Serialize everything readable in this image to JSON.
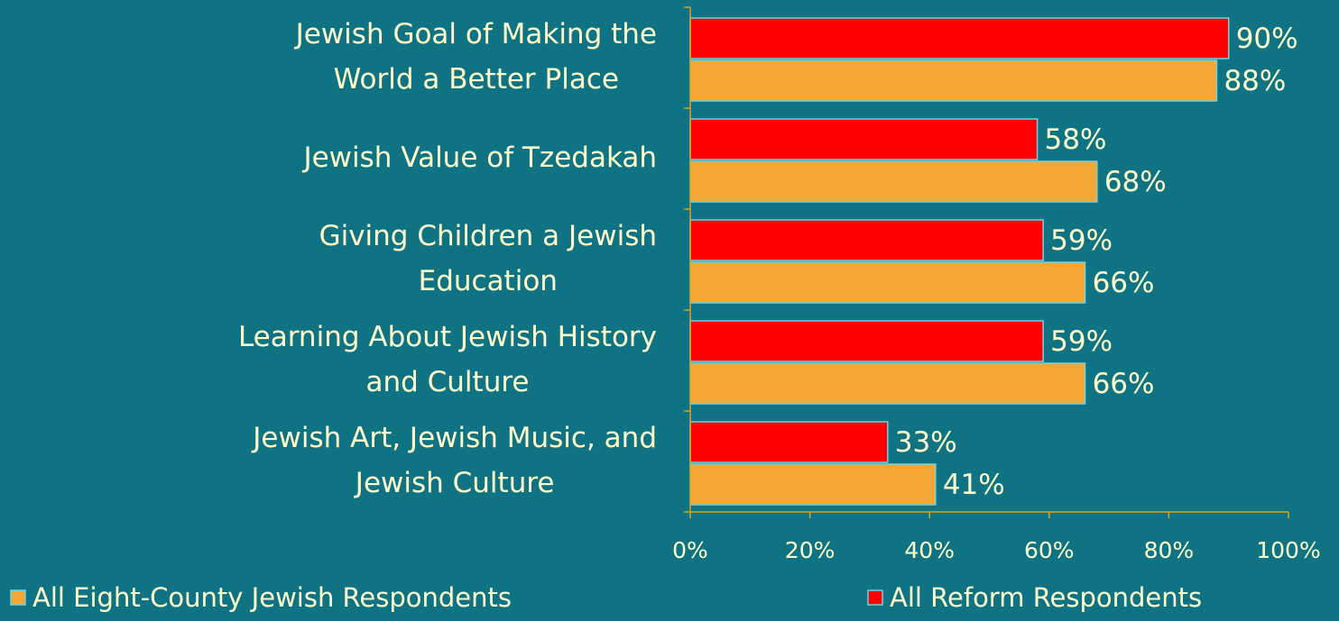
{
  "chart_data": {
    "type": "bar",
    "orientation": "horizontal",
    "categories": [
      "Jewish Goal of Making the\nWorld a Better Place",
      "Jewish Value of Tzedakah",
      "Giving Children a Jewish\nEducation",
      "Learning About Jewish History\nand Culture",
      "Jewish Art, Jewish Music, and\nJewish Culture"
    ],
    "series": [
      {
        "name": "All Eight-County Jewish Respondents",
        "color": "#f5a733",
        "values": [
          88,
          68,
          66,
          66,
          41
        ],
        "value_labels": [
          "88%",
          "68%",
          "66%",
          "66%",
          "41%"
        ]
      },
      {
        "name": "All Reform Respondents",
        "color": "#ff0000",
        "values": [
          90,
          58,
          59,
          59,
          33
        ],
        "value_labels": [
          "90%",
          "58%",
          "59%",
          "59%",
          "33%"
        ]
      }
    ],
    "xlim": [
      0,
      100
    ],
    "xticks": [
      {
        "value": 0,
        "label": "0%"
      },
      {
        "value": 20,
        "label": "20%"
      },
      {
        "value": 40,
        "label": "40%"
      },
      {
        "value": 60,
        "label": "60%"
      },
      {
        "value": 80,
        "label": "80%"
      },
      {
        "value": 100,
        "label": "100%"
      }
    ],
    "legend": "bottom"
  }
}
